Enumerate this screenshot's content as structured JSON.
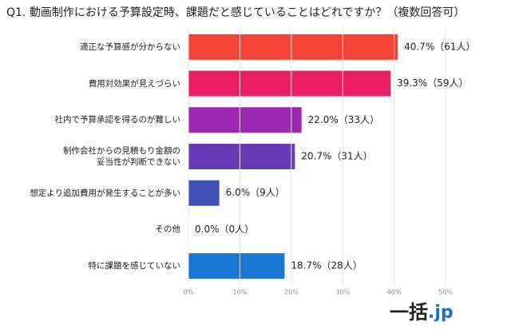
{
  "chart_data": {
    "type": "barh",
    "title": "Q1. 動画制作における予算設定時、課題だと感じていることはどれですか？（複数回答可）",
    "categories": [
      "適正な予算感が分からない",
      "費用対効果が見えづらい",
      "社内で予算承認を得るのが難しい",
      "制作会社からの見積もり金額の\n妥当性が判断できない",
      "想定より追加費用が発生することが多い",
      "その他",
      "特に課題を感じていない"
    ],
    "values": [
      40.7,
      39.3,
      22.0,
      20.7,
      6.0,
      0.0,
      18.7
    ],
    "value_labels": [
      "40.7%（61人）",
      "39.3%（59人）",
      "22.0%（33人）",
      "20.7%（31人）",
      "6.0%（9人）",
      "0.0%（0人）",
      "18.7%（28人）"
    ],
    "colors": [
      "#f44336",
      "#e91e63",
      "#9c27b0",
      "#673ab7",
      "#3f51b5",
      "#9e9e9e",
      "#1976d2"
    ],
    "xlim": [
      0,
      50
    ],
    "xticks": [
      {
        "value": 0,
        "label": "0%"
      },
      {
        "value": 10,
        "label": "10%"
      },
      {
        "value": 20,
        "label": "20%"
      },
      {
        "value": 30,
        "label": "30%"
      },
      {
        "value": 40,
        "label": "40%"
      },
      {
        "value": 50,
        "label": "50%"
      }
    ],
    "grid": true
  },
  "logo": {
    "main": "一括",
    "suffix": ".jp"
  }
}
